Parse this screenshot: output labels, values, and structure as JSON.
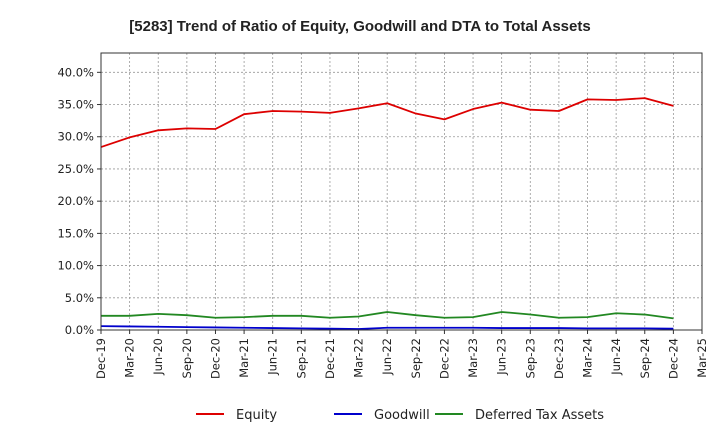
{
  "chart_data": {
    "type": "line",
    "title": "[5283]  Trend of Ratio of Equity, Goodwill and DTA to Total Assets",
    "xlabel": "",
    "ylabel": "",
    "x_tick_labels": [
      "Dec-19",
      "Mar-20",
      "Jun-20",
      "Sep-20",
      "Dec-20",
      "Mar-21",
      "Jun-21",
      "Sep-21",
      "Dec-21",
      "Mar-22",
      "Jun-22",
      "Sep-22",
      "Dec-22",
      "Mar-23",
      "Jun-23",
      "Sep-23",
      "Dec-23",
      "Mar-24",
      "Jun-24",
      "Sep-24",
      "Dec-24",
      "Mar-25"
    ],
    "y_tick_labels": [
      "0.0%",
      "5.0%",
      "10.0%",
      "15.0%",
      "20.0%",
      "25.0%",
      "30.0%",
      "35.0%",
      "40.0%"
    ],
    "y_ticks": [
      0,
      5,
      10,
      15,
      20,
      25,
      30,
      35,
      40
    ],
    "ylim": [
      0,
      43
    ],
    "grid": true,
    "legend_position": "bottom",
    "x": [
      "Dec-19",
      "Mar-20",
      "Jun-20",
      "Sep-20",
      "Dec-20",
      "Mar-21",
      "Jun-21",
      "Sep-21",
      "Dec-21",
      "Mar-22",
      "Jun-22",
      "Sep-22",
      "Dec-22",
      "Mar-23",
      "Jun-23",
      "Sep-23",
      "Dec-23",
      "Mar-24",
      "Jun-24",
      "Sep-24",
      "Dec-24"
    ],
    "series": [
      {
        "name": "Equity",
        "color": "#dd0000",
        "values": [
          28.4,
          29.9,
          31.0,
          31.3,
          31.2,
          33.5,
          34.0,
          33.9,
          33.7,
          34.4,
          35.2,
          33.6,
          32.7,
          34.3,
          35.3,
          34.2,
          34.0,
          35.8,
          35.7,
          36.0,
          34.8
        ]
      },
      {
        "name": "Goodwill",
        "color": "#0000cc",
        "values": [
          0.6,
          0.55,
          0.5,
          0.45,
          0.4,
          0.35,
          0.3,
          0.25,
          0.2,
          0.15,
          0.35,
          0.35,
          0.35,
          0.35,
          0.3,
          0.3,
          0.3,
          0.25,
          0.25,
          0.25,
          0.2
        ]
      },
      {
        "name": "Deferred Tax Assets",
        "color": "#228822",
        "values": [
          2.2,
          2.2,
          2.5,
          2.3,
          1.9,
          2.0,
          2.2,
          2.2,
          1.9,
          2.1,
          2.8,
          2.3,
          1.9,
          2.0,
          2.8,
          2.4,
          1.9,
          2.0,
          2.6,
          2.4,
          1.8
        ]
      }
    ]
  }
}
